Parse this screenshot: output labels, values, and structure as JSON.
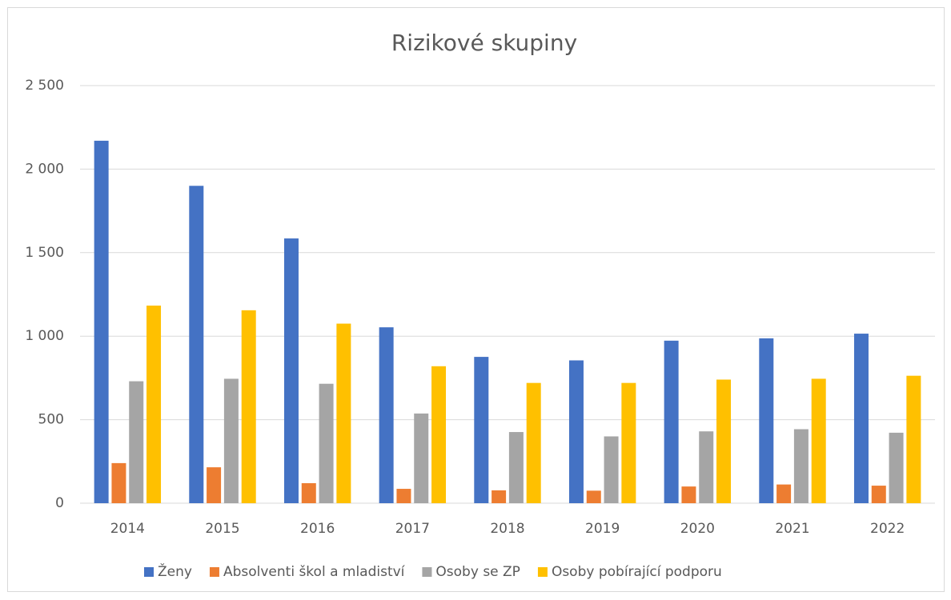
{
  "chart_data": {
    "type": "bar",
    "title": "Rizikové skupiny",
    "categories": [
      "2014",
      "2015",
      "2016",
      "2017",
      "2018",
      "2019",
      "2020",
      "2021",
      "2022"
    ],
    "series": [
      {
        "name": "Ženy",
        "color": "#4472c4",
        "values": [
          2170,
          1900,
          1585,
          1053,
          876,
          855,
          973,
          987,
          1015
        ]
      },
      {
        "name": "Absolventi škol a mladiství",
        "color": "#ed7d31",
        "values": [
          240,
          215,
          120,
          86,
          77,
          75,
          100,
          112,
          105
        ]
      },
      {
        "name": "Osoby se ZP",
        "color": "#a5a5a5",
        "values": [
          730,
          745,
          715,
          537,
          426,
          400,
          430,
          443,
          422
        ]
      },
      {
        "name": "Osoby pobírající podporu",
        "color": "#ffc000",
        "values": [
          1183,
          1155,
          1075,
          820,
          720,
          720,
          740,
          745,
          763
        ]
      }
    ],
    "ylim": [
      0,
      2500
    ],
    "yticks": [
      0,
      500,
      {
        "value": 1000,
        "label": "1 000"
      },
      {
        "value": 1500,
        "label": "1 500"
      },
      {
        "value": 2000,
        "label": "2 000"
      },
      {
        "value": 2500,
        "label": "2 500"
      }
    ],
    "grid": true,
    "legend": "bottom"
  }
}
